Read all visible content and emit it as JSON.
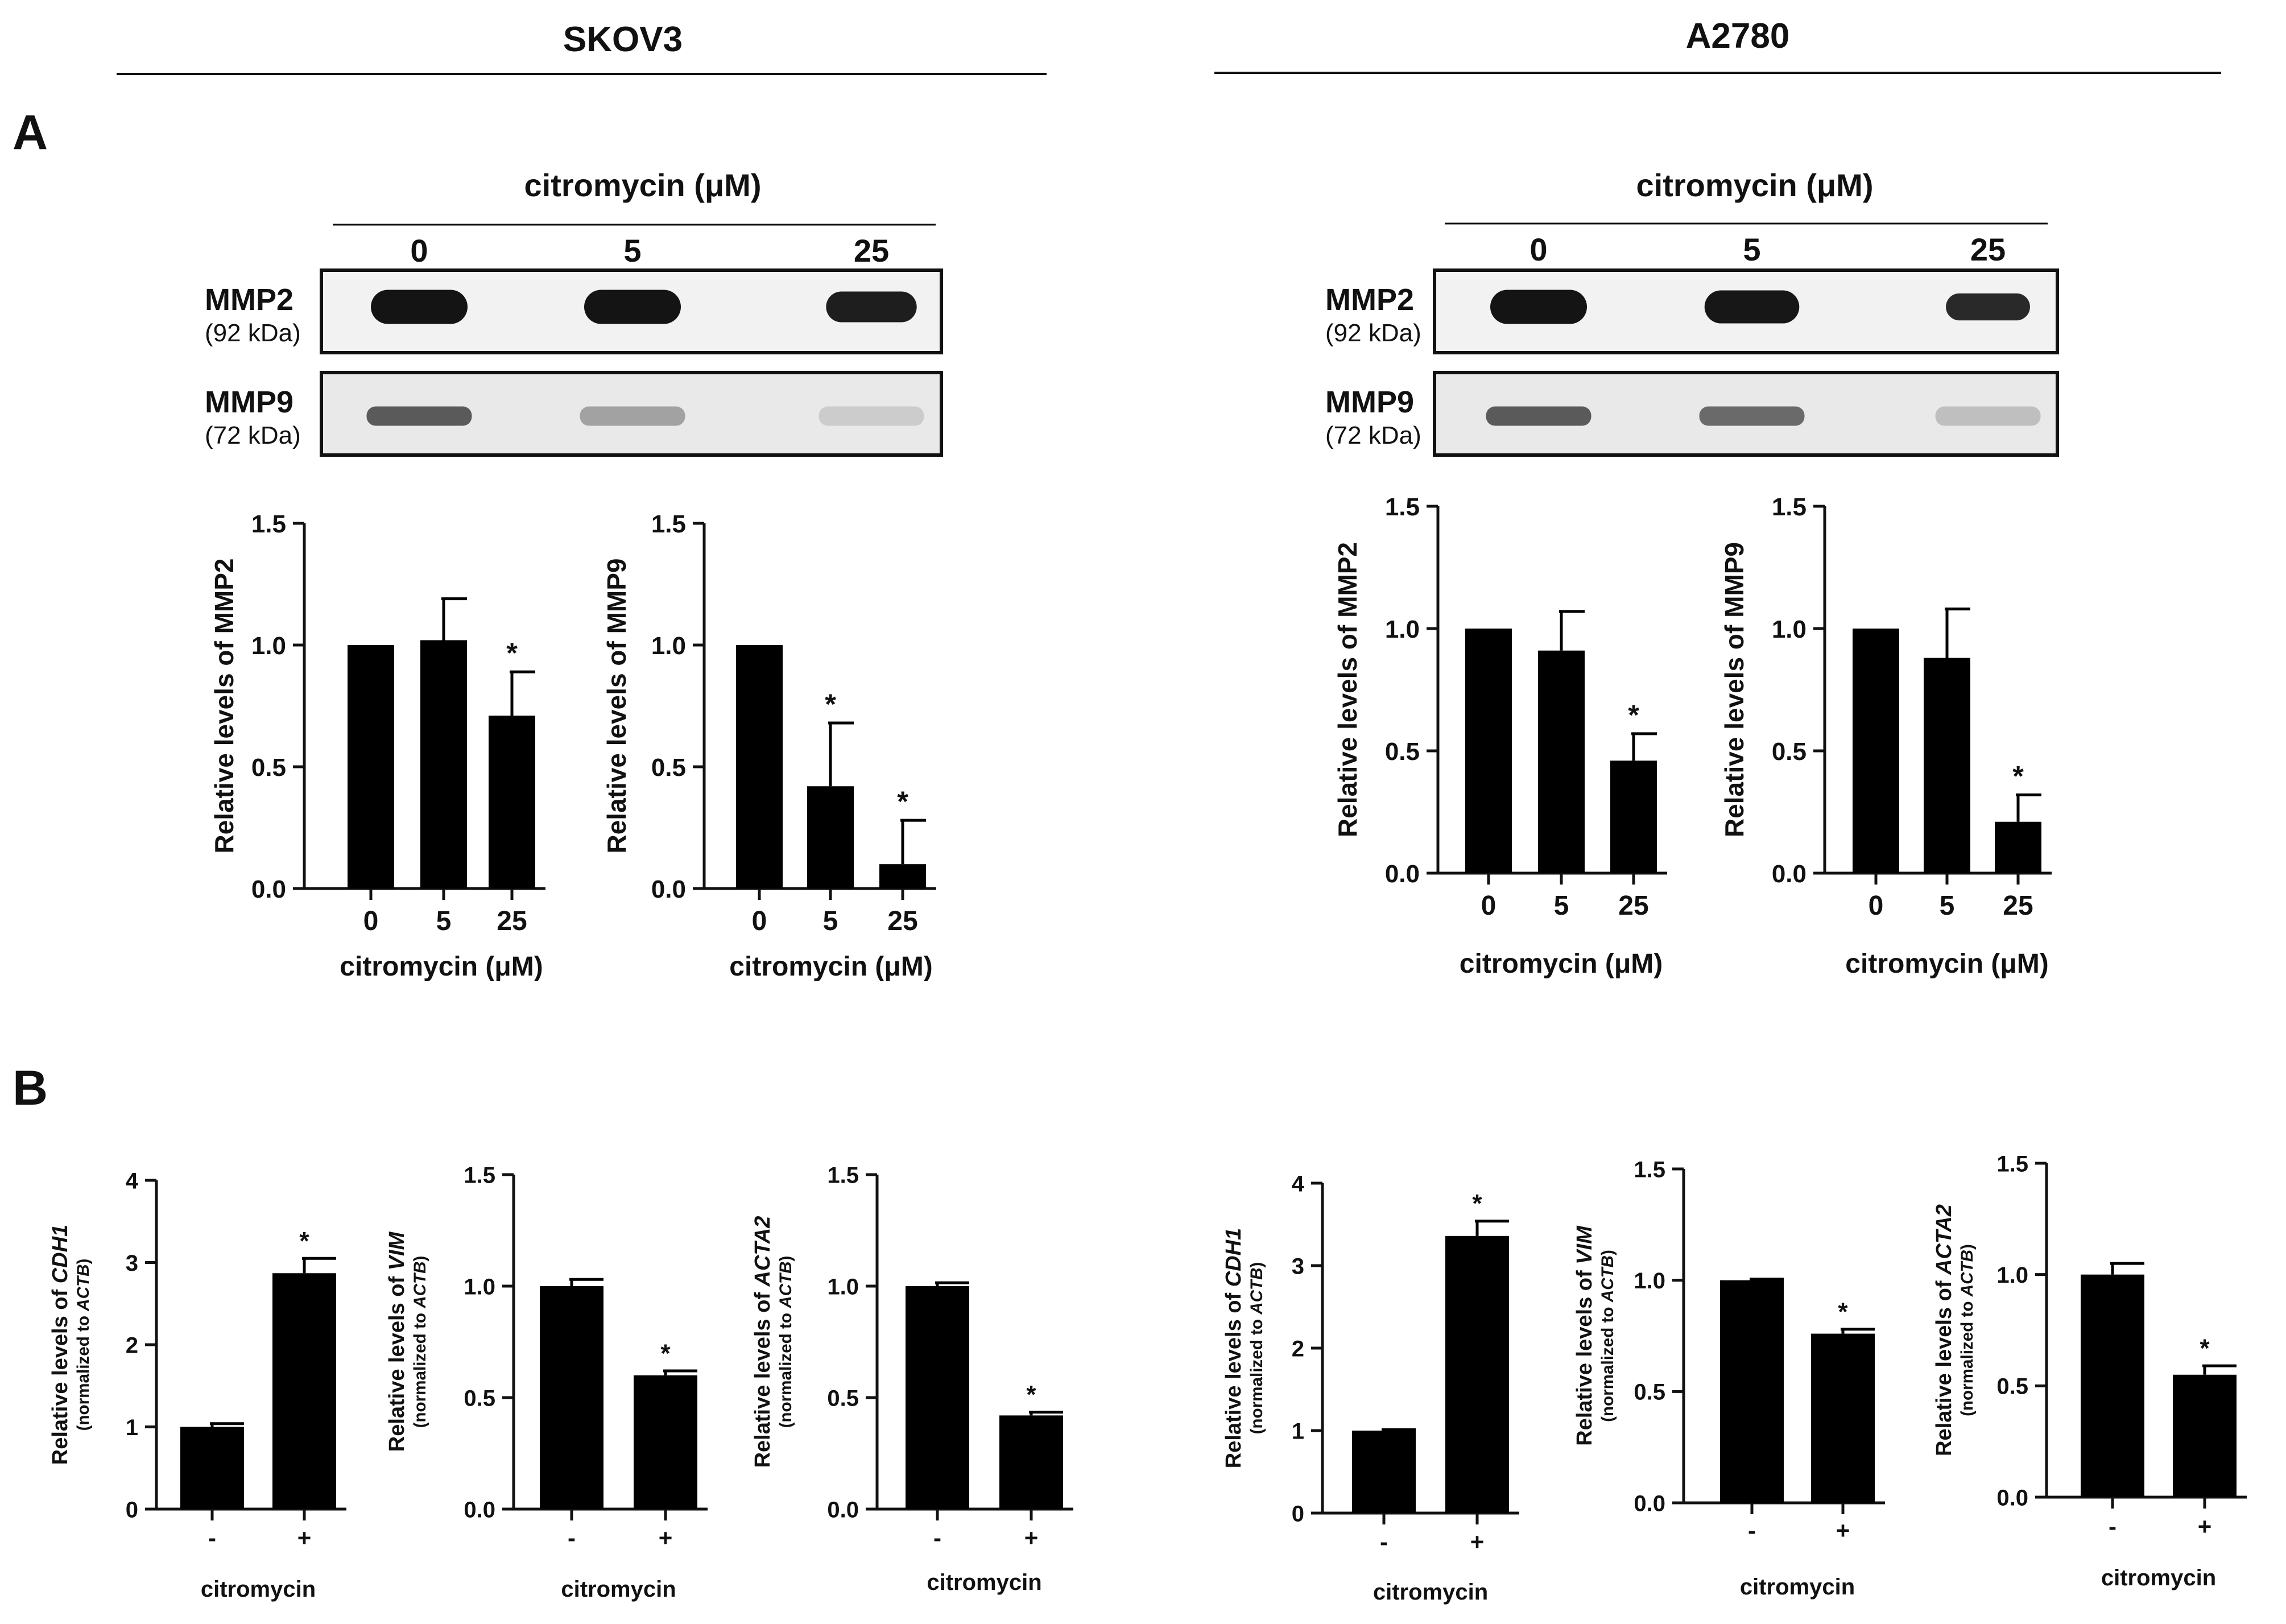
{
  "header": {
    "left_cell_line": "SKOV3",
    "right_cell_line": "A2780",
    "panel_a": "A",
    "panel_b": "B"
  },
  "blots": [
    {
      "cell_line": "SKOV3",
      "treatment_label": "citromycin (μM)",
      "lanes": [
        "0",
        "5",
        "25"
      ],
      "rows": [
        {
          "protein": "MMP2",
          "size": "(92 kDa)",
          "intensity": [
            1.0,
            1.0,
            0.75
          ]
        },
        {
          "protein": "MMP9",
          "size": "(72 kDa)",
          "intensity": [
            1.0,
            0.45,
            0.12
          ]
        }
      ]
    },
    {
      "cell_line": "A2780",
      "treatment_label": "citromycin (μM)",
      "lanes": [
        "0",
        "5",
        "25"
      ],
      "rows": [
        {
          "protein": "MMP2",
          "size": "(92 kDa)",
          "intensity": [
            1.0,
            0.92,
            0.48
          ]
        },
        {
          "protein": "MMP9",
          "size": "(72 kDa)",
          "intensity": [
            1.0,
            0.88,
            0.22
          ]
        }
      ]
    }
  ],
  "chart_data": [
    {
      "type": "bar",
      "cell_line": "SKOV3",
      "ylabel": "Relative levels of MMP2",
      "xlabel": "citromycin (μM)",
      "categories": [
        "0",
        "5",
        "25"
      ],
      "values": [
        1.0,
        1.02,
        0.71
      ],
      "errors": [
        0,
        0.17,
        0.18
      ],
      "significance": [
        "",
        "",
        "*"
      ],
      "ylim": [
        0,
        1.5
      ],
      "yticks": [
        "0.0",
        "0.5",
        "1.0",
        "1.5"
      ]
    },
    {
      "type": "bar",
      "cell_line": "SKOV3",
      "ylabel": "Relative levels of MMP9",
      "xlabel": "citromycin (μM)",
      "categories": [
        "0",
        "5",
        "25"
      ],
      "values": [
        1.0,
        0.42,
        0.1
      ],
      "errors": [
        0,
        0.26,
        0.18
      ],
      "significance": [
        "",
        "*",
        "*"
      ],
      "ylim": [
        0,
        1.5
      ],
      "yticks": [
        "0.0",
        "0.5",
        "1.0",
        "1.5"
      ]
    },
    {
      "type": "bar",
      "cell_line": "A2780",
      "ylabel": "Relative levels of MMP2",
      "xlabel": "citromycin (μM)",
      "categories": [
        "0",
        "5",
        "25"
      ],
      "values": [
        1.0,
        0.91,
        0.46
      ],
      "errors": [
        0,
        0.16,
        0.11
      ],
      "significance": [
        "",
        "",
        "*"
      ],
      "ylim": [
        0,
        1.5
      ],
      "yticks": [
        "0.0",
        "0.5",
        "1.0",
        "1.5"
      ]
    },
    {
      "type": "bar",
      "cell_line": "A2780",
      "ylabel": "Relative levels of MMP9",
      "xlabel": "citromycin (μM)",
      "categories": [
        "0",
        "5",
        "25"
      ],
      "values": [
        1.0,
        0.88,
        0.21
      ],
      "errors": [
        0,
        0.2,
        0.11
      ],
      "significance": [
        "",
        "",
        "*"
      ],
      "ylim": [
        0,
        1.5
      ],
      "yticks": [
        "0.0",
        "0.5",
        "1.0",
        "1.5"
      ]
    },
    {
      "type": "bar",
      "cell_line": "SKOV3",
      "ylabel_prefix": "Relative levels of ",
      "gene": "CDH1",
      "ylabel2_prefix": "(normalized to ",
      "ref_gene": "ACTB",
      "ylabel2_suffix": ")",
      "xlabel": "citromycin",
      "categories": [
        "-",
        "+"
      ],
      "values": [
        1.0,
        2.87
      ],
      "errors": [
        0.04,
        0.18
      ],
      "significance": [
        "",
        "*"
      ],
      "ylim": [
        0,
        4
      ],
      "yticks": [
        "0",
        "1",
        "2",
        "3",
        "4"
      ]
    },
    {
      "type": "bar",
      "cell_line": "SKOV3",
      "ylabel_prefix": "Relative levels of ",
      "gene": "VIM",
      "ylabel2_prefix": "(normalized to ",
      "ref_gene": "ACTB",
      "ylabel2_suffix": ")",
      "xlabel": "citromycin",
      "categories": [
        "-",
        "+"
      ],
      "values": [
        1.0,
        0.6
      ],
      "errors": [
        0.03,
        0.02
      ],
      "significance": [
        "",
        "*"
      ],
      "ylim": [
        0,
        1.5
      ],
      "yticks": [
        "0.0",
        "0.5",
        "1.0",
        "1.5"
      ]
    },
    {
      "type": "bar",
      "cell_line": "SKOV3",
      "ylabel_prefix": "Relative levels of ",
      "gene": "ACTA2",
      "ylabel2_prefix": "(normalized to ",
      "ref_gene": "ACTB",
      "ylabel2_suffix": ")",
      "xlabel": "citromycin",
      "categories": [
        "-",
        "+"
      ],
      "values": [
        1.0,
        0.42
      ],
      "errors": [
        0.015,
        0.015
      ],
      "significance": [
        "",
        "*"
      ],
      "ylim": [
        0,
        1.5
      ],
      "yticks": [
        "0.0",
        "0.5",
        "1.0",
        "1.5"
      ]
    },
    {
      "type": "bar",
      "cell_line": "A2780",
      "ylabel_prefix": "Relative levels of ",
      "gene": "CDH1",
      "ylabel2_prefix": "(normalized to ",
      "ref_gene": "ACTB",
      "ylabel2_suffix": ")",
      "xlabel": "citromycin",
      "categories": [
        "-",
        "+"
      ],
      "values": [
        1.0,
        3.36
      ],
      "errors": [
        0.01,
        0.18
      ],
      "significance": [
        "",
        "*"
      ],
      "ylim": [
        0,
        4
      ],
      "yticks": [
        "0",
        "1",
        "2",
        "3",
        "4"
      ]
    },
    {
      "type": "bar",
      "cell_line": "A2780",
      "ylabel_prefix": "Relative levels of ",
      "gene": "VIM",
      "ylabel2_prefix": "(normalized to ",
      "ref_gene": "ACTB",
      "ylabel2_suffix": ")",
      "xlabel": "citromycin",
      "categories": [
        "-",
        "+"
      ],
      "values": [
        1.0,
        0.76
      ],
      "errors": [
        0.005,
        0.02
      ],
      "significance": [
        "",
        "*"
      ],
      "ylim": [
        0,
        1.5
      ],
      "yticks": [
        "0.0",
        "0.5",
        "1.0",
        "1.5"
      ]
    },
    {
      "type": "bar",
      "cell_line": "A2780",
      "ylabel_prefix": "Relative levels of ",
      "gene": "ACTA2",
      "ylabel2_prefix": "(normalized to ",
      "ref_gene": "ACTB",
      "ylabel2_suffix": ")",
      "xlabel": "citromycin",
      "categories": [
        "-",
        "+"
      ],
      "values": [
        1.0,
        0.55
      ],
      "errors": [
        0.05,
        0.04
      ],
      "significance": [
        "",
        "*"
      ],
      "ylim": [
        0,
        1.5
      ],
      "yticks": [
        "0.0",
        "0.5",
        "1.0",
        "1.5"
      ]
    }
  ]
}
